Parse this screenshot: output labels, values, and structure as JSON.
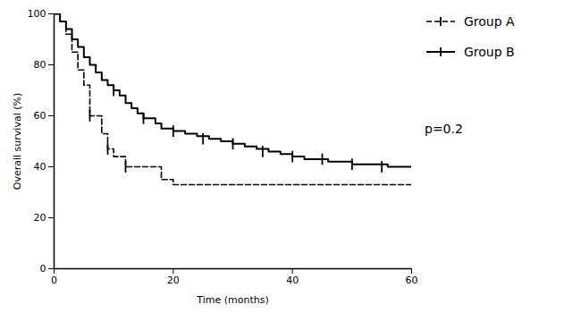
{
  "chart_data": {
    "type": "step",
    "xlabel": "Time (months)",
    "ylabel": "Overall survival (%)",
    "xlim": [
      0,
      60
    ],
    "ylim": [
      0,
      100
    ],
    "xticks": [
      0,
      20,
      40,
      60
    ],
    "yticks": [
      0,
      20,
      40,
      60,
      80,
      100
    ],
    "grid": false,
    "legend": "right",
    "annotation": "p=0.2",
    "series": [
      {
        "name": "Group A",
        "color": "#000000",
        "line_style": "dashed",
        "marker": "tick",
        "x": [
          0,
          1,
          2,
          3,
          4,
          5,
          6,
          7,
          8,
          9,
          10,
          12,
          15,
          18,
          20,
          22,
          25,
          30,
          35,
          40,
          45,
          50,
          55,
          60
        ],
        "values": [
          100,
          97,
          92,
          85,
          78,
          72,
          60,
          60,
          53,
          47,
          44,
          40,
          40,
          35,
          33,
          33,
          33,
          33,
          33,
          33,
          33,
          33,
          33,
          33
        ],
        "censor_x": [
          6,
          9,
          12
        ],
        "censor_y": [
          60,
          47,
          40
        ]
      },
      {
        "name": "Group B",
        "color": "#000000",
        "line_style": "solid",
        "marker": "tick",
        "x": [
          0,
          1,
          2,
          3,
          4,
          5,
          6,
          7,
          8,
          9,
          10,
          11,
          12,
          13,
          14,
          15,
          17,
          18,
          20,
          22,
          24,
          26,
          28,
          30,
          32,
          34,
          36,
          38,
          40,
          42,
          44,
          46,
          48,
          50,
          52,
          54,
          56,
          58,
          60
        ],
        "values": [
          100,
          97,
          94,
          90,
          87,
          83,
          80,
          77,
          74,
          72,
          70,
          68,
          65,
          63,
          61,
          59,
          57,
          55,
          54,
          53,
          52,
          51,
          50,
          49,
          48,
          47,
          46,
          45,
          44,
          43,
          43,
          42,
          42,
          41,
          41,
          41,
          40,
          40,
          40
        ],
        "censor_x": [
          10,
          15,
          20,
          25,
          30,
          35,
          40,
          45,
          50,
          55
        ],
        "censor_y": [
          70,
          59,
          54,
          51,
          49,
          46,
          44,
          43,
          41,
          40
        ]
      }
    ]
  }
}
